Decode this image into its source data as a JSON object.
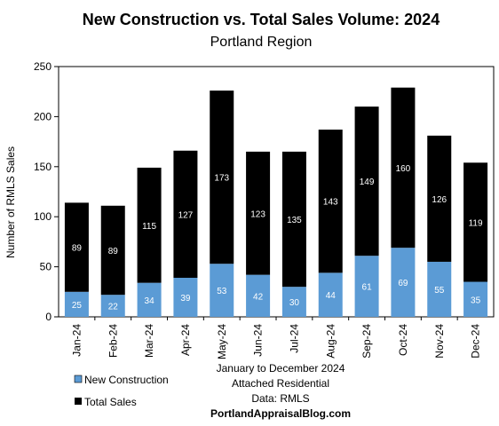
{
  "chart_data": {
    "type": "bar",
    "stacked": true,
    "title": "New Construction vs. Total Sales Volume: 2024",
    "subtitle": "Portland Region",
    "ylabel": "Number of RMLS Sales",
    "xlabel": "",
    "ylim": [
      0,
      250
    ],
    "yticks": [
      0,
      50,
      100,
      150,
      200,
      250
    ],
    "categories": [
      "Jan-24",
      "Feb-24",
      "Mar-24",
      "Apr-24",
      "May-24",
      "Jun-24",
      "Jul-24",
      "Aug-24",
      "Sep-24",
      "Oct-24",
      "Nov-24",
      "Dec-24"
    ],
    "series": [
      {
        "name": "New Construction",
        "color": "#5b9bd5",
        "values": [
          25,
          22,
          34,
          39,
          53,
          42,
          30,
          44,
          61,
          69,
          55,
          35
        ]
      },
      {
        "name": "Total Sales",
        "color": "#000000",
        "values": [
          89,
          89,
          115,
          127,
          173,
          123,
          135,
          143,
          149,
          160,
          126,
          119
        ]
      }
    ],
    "grid": false,
    "legend_position": "bottom-left",
    "annotations": [
      "January to December 2024",
      "Attached Residential",
      "Data: RMLS",
      "PortlandAppraisalBlog.com"
    ]
  }
}
